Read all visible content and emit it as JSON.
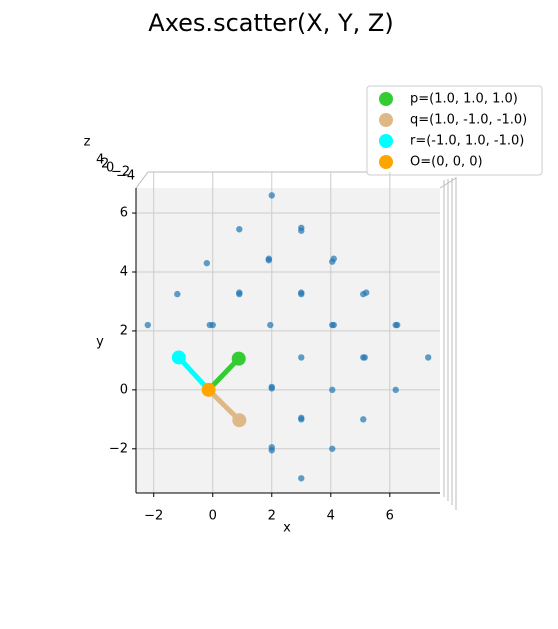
{
  "chart_data": {
    "type": "scatter",
    "title": "Axes.scatter(X, Y, Z)",
    "x_label": "x",
    "y_label": "y",
    "z_label": "z",
    "xlim": [
      -2.6,
      7.7
    ],
    "ylim": [
      -3.5,
      6.85
    ],
    "xticks": [
      {
        "value": -2,
        "label": "−2"
      },
      0,
      2,
      4,
      6
    ],
    "yticks": [
      {
        "value": -2,
        "label": "−2"
      },
      0,
      2,
      4,
      6
    ],
    "zticks": [
      4,
      2,
      0,
      {
        "value": -2,
        "label": "−2"
      },
      {
        "value": -4,
        "label": "−4"
      }
    ],
    "grid": true,
    "points": {
      "color": "#1f77b4",
      "x": [
        2,
        0.9,
        3,
        3,
        -0.2,
        1.9,
        1.9,
        4.1,
        4.05,
        -1.2,
        0.9,
        0.9,
        3,
        3,
        5.1,
        5.2,
        -2.2,
        -0.1,
        0,
        1.95,
        4.05,
        4.1,
        6.2,
        6.25,
        -1.2,
        0.9,
        3,
        5.1,
        5.15,
        7.3,
        -0.1,
        2,
        2,
        4.05,
        6.2,
        0.9,
        0.95,
        3,
        3,
        5.1,
        2,
        2,
        4.05,
        3
      ],
      "y": [
        6.6,
        5.45,
        5.5,
        5.4,
        4.3,
        4.45,
        4.4,
        4.45,
        4.35,
        3.25,
        3.3,
        3.25,
        3.3,
        3.25,
        3.25,
        3.3,
        2.2,
        2.2,
        2.2,
        2.2,
        2.2,
        2.2,
        2.2,
        2.2,
        1.1,
        1.1,
        1.1,
        1.1,
        1.1,
        1.1,
        0,
        0.1,
        0.05,
        0,
        0,
        -0.95,
        -1,
        -0.95,
        -1,
        -1,
        -1.95,
        -2.05,
        -2,
        -3
      ]
    },
    "legend_position": "upper right",
    "series": [
      {
        "name": "p=(1.0, 1.0, 1.0)",
        "color": "#33cc33",
        "x": [
          -0.14,
          0.88
        ],
        "y": [
          0,
          1.06
        ]
      },
      {
        "name": "q=(1.0, -1.0, -1.0)",
        "color": "#deb887",
        "x": [
          -0.14,
          0.9
        ],
        "y": [
          0,
          -1.03
        ]
      },
      {
        "name": "r=(-1.0, 1.0, -1.0)",
        "color": "#00ffff",
        "x": [
          -0.14,
          -1.15
        ],
        "y": [
          0,
          1.1
        ]
      },
      {
        "name": "O=(0, 0, 0)",
        "color": "#ffa500",
        "x": [
          -0.14
        ],
        "y": [
          0
        ]
      }
    ]
  }
}
